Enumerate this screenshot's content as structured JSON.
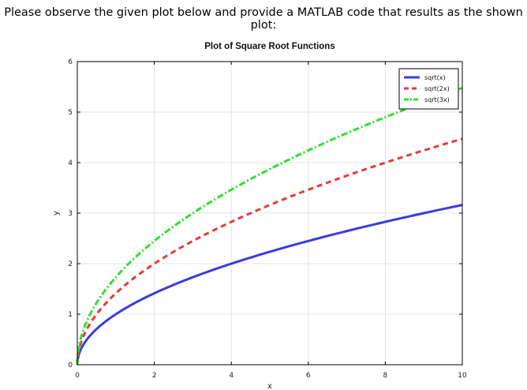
{
  "prompt": "Please observe the given plot below and provide a MATLAB code that results as the shown plot:",
  "chart_data": {
    "type": "line",
    "title": "Plot of Square Root Functions",
    "xlabel": "x",
    "ylabel": "y",
    "xlim": [
      0,
      10
    ],
    "ylim": [
      0,
      6
    ],
    "xticks": [
      0,
      2,
      4,
      6,
      8,
      10
    ],
    "yticks": [
      0,
      1,
      2,
      3,
      4,
      5,
      6
    ],
    "grid": true,
    "legend_location": "top-right",
    "series": [
      {
        "name": "sqrt(x)",
        "factor": 1,
        "color": "#3b3bdf",
        "style": "solid",
        "x": [
          0,
          0.5,
          1,
          2,
          4,
          6,
          8,
          10
        ],
        "values": [
          0,
          0.71,
          1.0,
          1.41,
          2.0,
          2.45,
          2.83,
          3.16
        ]
      },
      {
        "name": "sqrt(2x)",
        "factor": 2,
        "color": "#e83a3a",
        "style": "dashed",
        "x": [
          0,
          0.5,
          1,
          2,
          4,
          6,
          8,
          10
        ],
        "values": [
          0,
          1.0,
          1.41,
          2.0,
          2.83,
          3.46,
          4.0,
          4.47
        ]
      },
      {
        "name": "sqrt(3x)",
        "factor": 3,
        "color": "#2ee02e",
        "style": "dashdot",
        "x": [
          0,
          0.5,
          1,
          2,
          4,
          6,
          8,
          10
        ],
        "values": [
          0,
          1.22,
          1.73,
          2.45,
          3.46,
          4.24,
          4.9,
          5.48
        ]
      }
    ]
  }
}
